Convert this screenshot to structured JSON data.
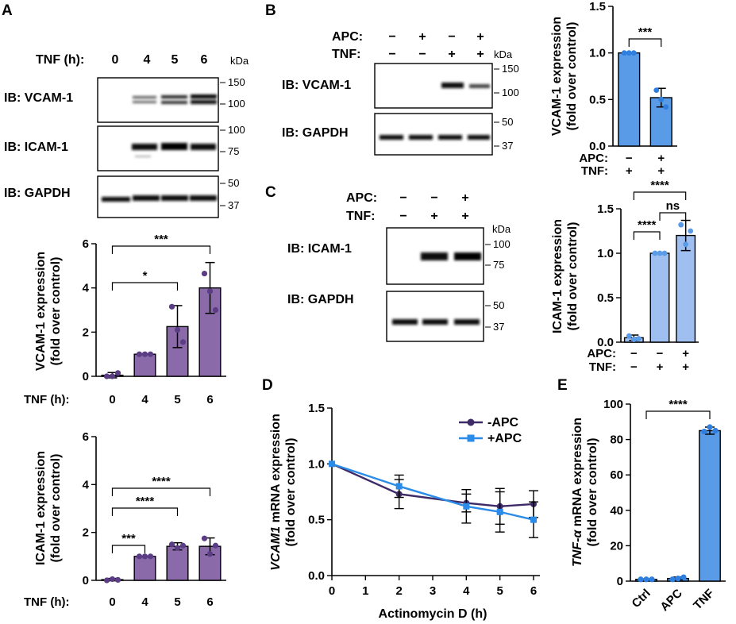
{
  "colors": {
    "purple": "#8a6aa8",
    "purple_dark": "#5a3d85",
    "blue_dark": "#2f7fe0",
    "blue_light": "#9fbff0",
    "blue_mid": "#5a9be8",
    "line_purple": "#3d2a66",
    "line_blue": "#2b8be8"
  },
  "panels": {
    "A": {
      "letter": "A",
      "kda": "kDa",
      "condition": {
        "label": "TNF (h):",
        "values": [
          "0",
          "4",
          "5",
          "6"
        ]
      },
      "blots": [
        {
          "label": "IB: VCAM-1",
          "markers": [
            "150",
            "100"
          ]
        },
        {
          "label": "IB: ICAM-1",
          "markers": [
            "100",
            "75"
          ]
        },
        {
          "label": "IB: GAPDH",
          "markers": [
            "50",
            "37"
          ]
        }
      ]
    },
    "B": {
      "letter": "B",
      "kda": "kDa",
      "rows": [
        {
          "label": "APC:",
          "values": [
            "−",
            "+",
            "−",
            "+"
          ]
        },
        {
          "label": "TNF:",
          "values": [
            "−",
            "−",
            "+",
            "+"
          ]
        }
      ],
      "blots": [
        {
          "label": "IB: VCAM-1",
          "markers": [
            "150",
            "100"
          ]
        },
        {
          "label": "IB: GAPDH",
          "markers": [
            "50",
            "37"
          ]
        }
      ]
    },
    "C": {
      "letter": "C",
      "kda": "kDa",
      "rows": [
        {
          "label": "APC:",
          "values": [
            "−",
            "−",
            "+"
          ]
        },
        {
          "label": "TNF:",
          "values": [
            "−",
            "+",
            "+"
          ]
        }
      ],
      "blots": [
        {
          "label": "IB: ICAM-1",
          "markers": [
            "100",
            "75"
          ]
        },
        {
          "label": "IB: GAPDH",
          "markers": [
            "50",
            "37"
          ]
        }
      ]
    },
    "D": {
      "letter": "D"
    },
    "E": {
      "letter": "E"
    }
  },
  "chart_data": [
    {
      "id": "A_vcam",
      "type": "bar",
      "ylabel": [
        "VCAM-1 expression",
        "(fold over control)"
      ],
      "xlabel_prefix": "TNF (h):",
      "categories": [
        "0",
        "4",
        "5",
        "6"
      ],
      "values": [
        0.05,
        1.0,
        2.25,
        4.0
      ],
      "errors": [
        0.12,
        0.0,
        0.95,
        1.15
      ],
      "ylim": [
        0,
        6
      ],
      "yticks": [
        "0",
        "2",
        "4",
        "6"
      ],
      "points": [
        [
          0.0,
          0.0,
          0.15
        ],
        [
          1.0,
          1.0,
          1.0
        ],
        [
          3.15,
          2.1,
          1.55
        ],
        [
          4.65,
          3.85,
          3.0
        ]
      ],
      "significance": [
        {
          "pair": [
            0,
            3
          ],
          "label": "***"
        },
        {
          "pair": [
            0,
            2
          ],
          "label": "*"
        }
      ]
    },
    {
      "id": "A_icam",
      "type": "bar",
      "ylabel": [
        "ICAM-1 expression",
        "(fold over control)"
      ],
      "xlabel_prefix": "TNF (h):",
      "categories": [
        "0",
        "4",
        "5",
        "6"
      ],
      "values": [
        0.03,
        1.0,
        1.42,
        1.42
      ],
      "errors": [
        0.05,
        0.0,
        0.15,
        0.35
      ],
      "ylim": [
        0,
        6
      ],
      "yticks": [
        "0",
        "2",
        "4",
        "6"
      ],
      "points": [
        [
          0.0,
          0.05,
          0.02
        ],
        [
          1.0,
          1.0,
          1.0
        ],
        [
          1.5,
          1.35,
          1.45
        ],
        [
          1.75,
          1.1,
          1.45
        ]
      ],
      "significance": [
        {
          "pair": [
            0,
            3
          ],
          "label": "****"
        },
        {
          "pair": [
            0,
            2
          ],
          "label": "****"
        },
        {
          "pair": [
            0,
            1
          ],
          "label": "***"
        }
      ]
    },
    {
      "id": "B_vcam",
      "type": "bar",
      "ylabel": [
        "VCAM-1 expression",
        "(fold over control)"
      ],
      "condition_rows": [
        {
          "label": "APC:",
          "values": [
            "−",
            "+"
          ]
        },
        {
          "label": "TNF:",
          "values": [
            "+",
            "+"
          ]
        }
      ],
      "values": [
        1.0,
        0.52
      ],
      "errors": [
        0.0,
        0.1
      ],
      "ylim": [
        0,
        1.5
      ],
      "yticks": [
        "0.0",
        "0.5",
        "1.0",
        "1.5"
      ],
      "points": [
        [
          1.0,
          1.0,
          1.0
        ],
        [
          0.6,
          0.5,
          0.42
        ]
      ],
      "significance": [
        {
          "pair": [
            0,
            1
          ],
          "label": "***"
        }
      ]
    },
    {
      "id": "C_icam",
      "type": "bar",
      "ylabel": [
        "ICAM-1 expression",
        "(fold over control)"
      ],
      "condition_rows": [
        {
          "label": "APC:",
          "values": [
            "−",
            "−",
            "+"
          ]
        },
        {
          "label": "TNF:",
          "values": [
            "−",
            "+",
            "+"
          ]
        }
      ],
      "values": [
        0.05,
        1.0,
        1.2
      ],
      "errors": [
        0.03,
        0.0,
        0.17
      ],
      "ylim": [
        0,
        1.5
      ],
      "yticks": [
        "0.0",
        "0.5",
        "1.0",
        "1.5"
      ],
      "points": [
        [
          0.07,
          0.03,
          0.04
        ],
        [
          1.0,
          1.0,
          1.0
        ],
        [
          1.32,
          1.1,
          1.25
        ]
      ],
      "significance": [
        {
          "pair": [
            0,
            2
          ],
          "label": "****"
        },
        {
          "pair": [
            1,
            2
          ],
          "label": "ns"
        },
        {
          "pair": [
            0,
            1
          ],
          "label": "****"
        }
      ]
    },
    {
      "id": "D_line",
      "type": "line",
      "title_italic": "VCAM1",
      "ylabel": [
        "VCAM1 mRNA expression",
        "(fold over control)"
      ],
      "ylabel_rest": " mRNA expression",
      "ylabel2": "(fold over control)",
      "xlabel": "Actinomycin D (h)",
      "x": [
        0,
        2,
        4,
        5,
        6
      ],
      "xticks": [
        "0",
        "1",
        "2",
        "3",
        "4",
        "5",
        "6"
      ],
      "ylim": [
        0,
        1.5
      ],
      "yticks": [
        "0.0",
        "0.5",
        "1.0",
        "1.5"
      ],
      "series": [
        {
          "name": "-APC",
          "values": [
            1.0,
            0.73,
            0.65,
            0.62,
            0.64
          ],
          "errors": [
            0,
            0.13,
            0.08,
            0.16,
            0.12
          ]
        },
        {
          "name": "+APC",
          "values": [
            1.0,
            0.8,
            0.62,
            0.57,
            0.5
          ],
          "errors": [
            0,
            0.1,
            0.15,
            0.18,
            0.16
          ]
        }
      ]
    },
    {
      "id": "E_tnf",
      "type": "bar",
      "ylabel_italic": "TNF-α",
      "ylabel_rest": " mRNA expression",
      "ylabel2": "(fold over control)",
      "categories": [
        "Ctrl",
        "APC",
        "TNF"
      ],
      "values": [
        1.0,
        1.5,
        85.0
      ],
      "errors": [
        0.3,
        0.8,
        2.0
      ],
      "ylim": [
        0,
        100
      ],
      "yticks": [
        "0",
        "20",
        "40",
        "60",
        "80",
        "100"
      ],
      "points": [
        [
          1.0,
          1.0,
          1.0
        ],
        [
          1.0,
          1.5,
          2.2
        ],
        [
          84.5,
          87.0,
          85.0
        ]
      ],
      "significance": [
        {
          "pair": [
            0,
            2
          ],
          "label": "****"
        }
      ]
    }
  ]
}
